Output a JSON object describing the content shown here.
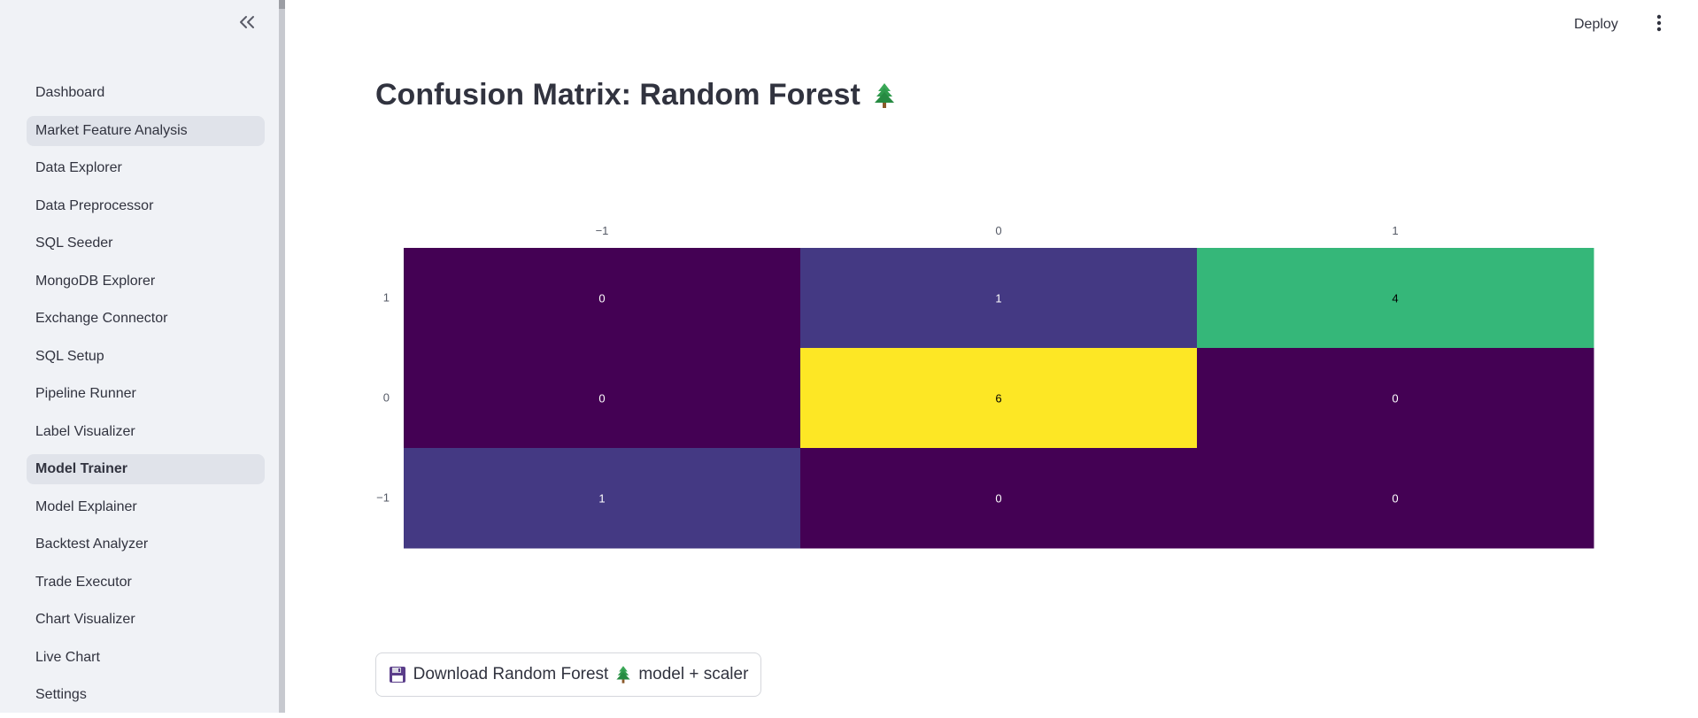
{
  "sidebar": {
    "items": [
      {
        "label": "Dashboard",
        "state": "normal"
      },
      {
        "label": "Market Feature Analysis",
        "state": "hover"
      },
      {
        "label": "Data Explorer",
        "state": "normal"
      },
      {
        "label": "Data Preprocessor",
        "state": "normal"
      },
      {
        "label": "SQL Seeder",
        "state": "normal"
      },
      {
        "label": "MongoDB Explorer",
        "state": "normal"
      },
      {
        "label": "Exchange Connector",
        "state": "normal"
      },
      {
        "label": "SQL Setup",
        "state": "normal"
      },
      {
        "label": "Pipeline Runner",
        "state": "normal"
      },
      {
        "label": "Label Visualizer",
        "state": "normal"
      },
      {
        "label": "Model Trainer",
        "state": "active"
      },
      {
        "label": "Model Explainer",
        "state": "normal"
      },
      {
        "label": "Backtest Analyzer",
        "state": "normal"
      },
      {
        "label": "Trade Executor",
        "state": "normal"
      },
      {
        "label": "Chart Visualizer",
        "state": "normal"
      },
      {
        "label": "Live Chart",
        "state": "normal"
      },
      {
        "label": "Settings",
        "state": "normal"
      }
    ],
    "collapse_icon": "chevrons-left-icon"
  },
  "header": {
    "deploy_label": "Deploy",
    "menu_icon": "kebab-menu-icon"
  },
  "main": {
    "title": "Confusion Matrix: Random Forest",
    "title_icon": "evergreen-tree-icon",
    "download_button": {
      "icon_left": "floppy-disk-icon",
      "label_part1": "Download Random Forest",
      "icon_middle": "evergreen-tree-icon",
      "label_part2": "model + scaler"
    }
  },
  "chart_data": {
    "type": "heatmap",
    "colorscale": "viridis",
    "x_tick_labels": [
      "−1",
      "0",
      "1"
    ],
    "y_tick_labels": [
      "1",
      "0",
      "−1"
    ],
    "z": [
      [
        0,
        1,
        4
      ],
      [
        0,
        6,
        0
      ],
      [
        1,
        0,
        0
      ]
    ],
    "z_range": [
      0,
      6
    ],
    "cell_colors": [
      [
        "#440154",
        "#443983",
        "#35b779"
      ],
      [
        "#440154",
        "#fde725",
        "#440154"
      ],
      [
        "#443983",
        "#440154",
        "#440154"
      ]
    ],
    "text_colors": [
      [
        "#ffffff",
        "#ffffff",
        "#000000"
      ],
      [
        "#ffffff",
        "#000000",
        "#ffffff"
      ],
      [
        "#ffffff",
        "#ffffff",
        "#ffffff"
      ]
    ],
    "x_axis_position": "top"
  }
}
